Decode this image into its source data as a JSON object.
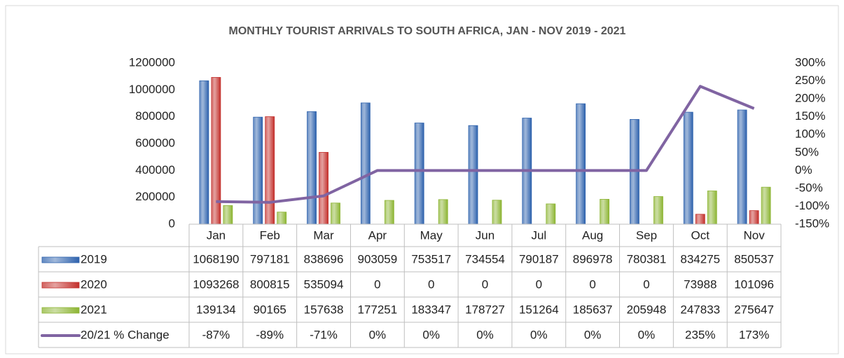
{
  "chart_data": {
    "type": "bar",
    "title": "MONTHLY TOURIST ARRIVALS TO SOUTH AFRICA, JAN - NOV 2019 - 2021",
    "categories": [
      "Jan",
      "Feb",
      "Mar",
      "Apr",
      "May",
      "Jun",
      "Jul",
      "Aug",
      "Sep",
      "Oct",
      "Nov"
    ],
    "series": [
      {
        "name": "2019",
        "color": "#2e62ad",
        "values": [
          1068190,
          797181,
          838696,
          903059,
          753517,
          734554,
          790187,
          896978,
          780381,
          834275,
          850537
        ]
      },
      {
        "name": "2020",
        "color": "#c3302c",
        "values": [
          1093268,
          800815,
          535094,
          0,
          0,
          0,
          0,
          0,
          0,
          73988,
          101096
        ]
      },
      {
        "name": "2021",
        "color": "#8db534",
        "values": [
          139134,
          90165,
          157638,
          177251,
          183347,
          178727,
          151264,
          185637,
          205948,
          247833,
          275647
        ]
      },
      {
        "name": "20/21 % Change",
        "color": "#8064a2",
        "axis": "y2",
        "type": "line",
        "values": [
          -87,
          -89,
          -71,
          0,
          0,
          0,
          0,
          0,
          0,
          235,
          173
        ],
        "value_labels": [
          "-87%",
          "-89%",
          "-71%",
          "0%",
          "0%",
          "0%",
          "0%",
          "0%",
          "0%",
          "235%",
          "173%"
        ]
      }
    ],
    "ylim": [
      0,
      1200000
    ],
    "yticks": [
      0,
      200000,
      400000,
      600000,
      800000,
      1000000,
      1200000
    ],
    "y2lim": [
      -150,
      300
    ],
    "y2ticks": [
      {
        "value": -150,
        "label": "-150%"
      },
      {
        "value": -100,
        "label": "-100%"
      },
      {
        "value": -50,
        "label": "-50%"
      },
      {
        "value": 0,
        "label": "0%"
      },
      {
        "value": 50,
        "label": "50%"
      },
      {
        "value": 100,
        "label": "100%"
      },
      {
        "value": 150,
        "label": "150%"
      },
      {
        "value": 200,
        "label": "200%"
      },
      {
        "value": 250,
        "label": "250%"
      },
      {
        "value": 300,
        "label": "300%"
      }
    ],
    "grid": false,
    "data_table": true
  }
}
